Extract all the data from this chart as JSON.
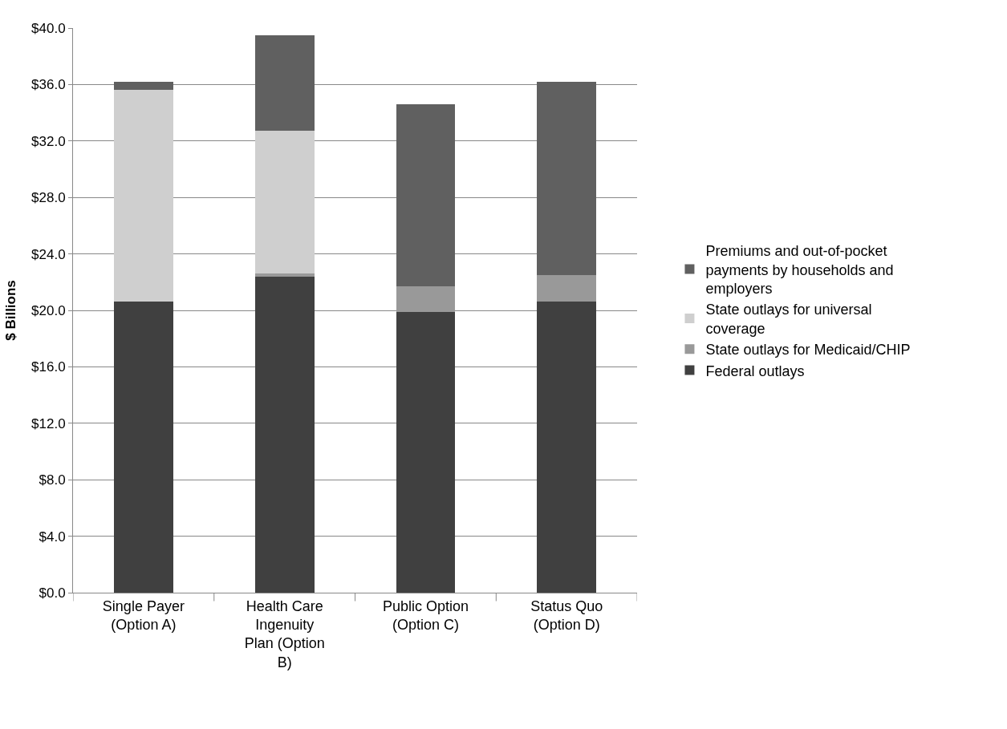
{
  "chart_data": {
    "type": "bar",
    "stacked": true,
    "ylabel": "$ Billions",
    "categories": [
      "Single Payer (Option A)",
      "Health Care Ingenuity Plan (Option B)",
      "Public Option (Option C)",
      "Status Quo (Option D)"
    ],
    "series": [
      {
        "name": "Federal outlays",
        "color": "#404040",
        "values": [
          20.6,
          22.4,
          19.9,
          20.6
        ]
      },
      {
        "name": "State outlays for Medicaid/CHIP",
        "color": "#999999",
        "values": [
          0,
          0.2,
          1.8,
          1.9
        ]
      },
      {
        "name": "State outlays for universal coverage",
        "color": "#cfcfcf",
        "values": [
          15.0,
          10.1,
          0,
          0
        ]
      },
      {
        "name": "Premiums and out-of-pocket payments by households and employers",
        "color": "#606060",
        "values": [
          0.6,
          6.8,
          12.9,
          13.7
        ]
      }
    ],
    "ylim": [
      0,
      40
    ],
    "yticks": [
      {
        "value": 0,
        "label": "$0.0"
      },
      {
        "value": 4,
        "label": "$4.0"
      },
      {
        "value": 8,
        "label": "$8.0"
      },
      {
        "value": 12,
        "label": "$12.0"
      },
      {
        "value": 16,
        "label": "$16.0"
      },
      {
        "value": 20,
        "label": "$20.0"
      },
      {
        "value": 24,
        "label": "$24.0"
      },
      {
        "value": 28,
        "label": "$28.0"
      },
      {
        "value": 32,
        "label": "$32.0"
      },
      {
        "value": 36,
        "label": "$36.0"
      },
      {
        "value": 40,
        "label": "$40.0"
      }
    ],
    "grid": "y",
    "legend": "right"
  }
}
